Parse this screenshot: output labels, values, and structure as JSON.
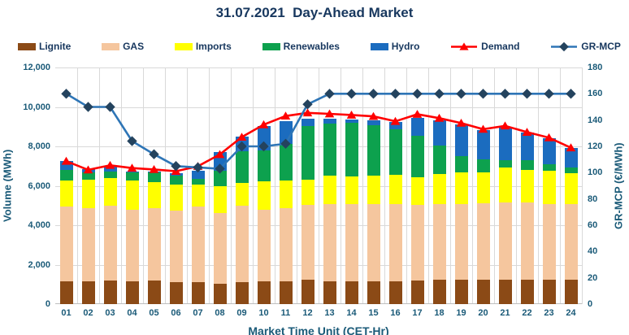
{
  "title": "31.07.2021  Day-Ahead Market",
  "legend": {
    "items": [
      {
        "label": "Lignite",
        "swatch": "box",
        "color": "#8B4A16"
      },
      {
        "label": "GAS",
        "swatch": "box",
        "color": "#F5C69E"
      },
      {
        "label": "Imports",
        "swatch": "box",
        "color": "#FFFF00"
      },
      {
        "label": "Renewables",
        "swatch": "box",
        "color": "#0DA14E"
      },
      {
        "label": "Hydro",
        "swatch": "box",
        "color": "#1B6CBF"
      },
      {
        "label": "Demand",
        "swatch": "line-triangle",
        "color": "#FF0000",
        "marker_color": "#FF0000"
      },
      {
        "label": "GR-MCP",
        "swatch": "line-diamond",
        "color": "#2E75B6",
        "marker_color": "#24435E"
      }
    ]
  },
  "chart_data": {
    "type": "combo: stacked-bar + line",
    "categories": [
      "01",
      "02",
      "03",
      "04",
      "05",
      "06",
      "07",
      "08",
      "09",
      "10",
      "11",
      "12",
      "13",
      "14",
      "15",
      "16",
      "17",
      "18",
      "19",
      "20",
      "21",
      "22",
      "23",
      "24"
    ],
    "xlabel": "Market Time Unit (CET-Hr)",
    "left_axis": {
      "title": "Volume (MWh)",
      "min": 0,
      "max": 12000,
      "tick_step": 2000,
      "tick_labels": [
        "0",
        "2,000",
        "4,000",
        "6,000",
        "8,000",
        "10,000",
        "12,000"
      ]
    },
    "right_axis": {
      "title": "GR-MCP (€/MWh)",
      "min": 0,
      "max": 180,
      "tick_step": 20,
      "tick_labels": [
        "0",
        "20",
        "40",
        "60",
        "80",
        "100",
        "120",
        "140",
        "160",
        "180"
      ]
    },
    "grid": {
      "horizontal": true,
      "vertical": true,
      "color": "#D9D9D9"
    },
    "legend_position": "top",
    "bar_series": [
      {
        "name": "Lignite",
        "color": "#8B4A16",
        "values": [
          1150,
          1150,
          1180,
          1150,
          1180,
          1100,
          1100,
          1050,
          1100,
          1150,
          1150,
          1220,
          1150,
          1150,
          1150,
          1150,
          1180,
          1220,
          1220,
          1220,
          1250,
          1250,
          1220,
          1220
        ]
      },
      {
        "name": "GAS",
        "color": "#F5C69E",
        "values": [
          3790,
          3700,
          3830,
          3650,
          3690,
          3660,
          3860,
          3560,
          3900,
          3650,
          3700,
          3800,
          3920,
          3920,
          3920,
          3920,
          3840,
          3870,
          3870,
          3900,
          3910,
          3910,
          3850,
          3850
        ]
      },
      {
        "name": "Imports",
        "color": "#FFFF00",
        "values": [
          1330,
          1450,
          1390,
          1450,
          1310,
          1300,
          1100,
          1380,
          1140,
          1410,
          1430,
          1270,
          1440,
          1410,
          1440,
          1480,
          1430,
          1490,
          1570,
          1570,
          1760,
          1660,
          1690,
          1550
        ]
      },
      {
        "name": "Renewables",
        "color": "#0DA14E",
        "values": [
          540,
          370,
          340,
          450,
          510,
          470,
          280,
          790,
          1630,
          1580,
          1830,
          2760,
          2660,
          2720,
          2560,
          2320,
          2080,
          1450,
          830,
          650,
          390,
          460,
          340,
          300
        ]
      },
      {
        "name": "Hydro",
        "color": "#1B6CBF",
        "values": [
          440,
          180,
          250,
          40,
          50,
          100,
          420,
          920,
          710,
          1240,
          1160,
          350,
          240,
          180,
          240,
          350,
          930,
          1290,
          1640,
          1490,
          1680,
          1410,
          1320,
          980
        ]
      }
    ],
    "line_series": [
      {
        "name": "Demand",
        "axis": "left",
        "marker": "triangle",
        "line_color": "#FF0000",
        "marker_color": "#FF0000",
        "values": [
          7250,
          6810,
          7040,
          6900,
          6830,
          6740,
          6990,
          7590,
          8470,
          9100,
          9540,
          9700,
          9650,
          9590,
          9520,
          9270,
          9630,
          9430,
          9180,
          8870,
          9040,
          8720,
          8440,
          7930
        ]
      },
      {
        "name": "GR-MCP",
        "axis": "right",
        "marker": "diamond",
        "line_color": "#2E75B6",
        "marker_color": "#24435E",
        "values": [
          160,
          150,
          150,
          124,
          114,
          105,
          104,
          103,
          120,
          120,
          122,
          152,
          160,
          160,
          160,
          160,
          160,
          160,
          160,
          160,
          160,
          160,
          160,
          160
        ]
      }
    ]
  },
  "colors": {
    "title_text": "#17375E",
    "axis_text": "#1A5A78",
    "grid": "#D9D9D9",
    "axis_line": "#BFBFBF",
    "background": "#FFFFFF"
  }
}
